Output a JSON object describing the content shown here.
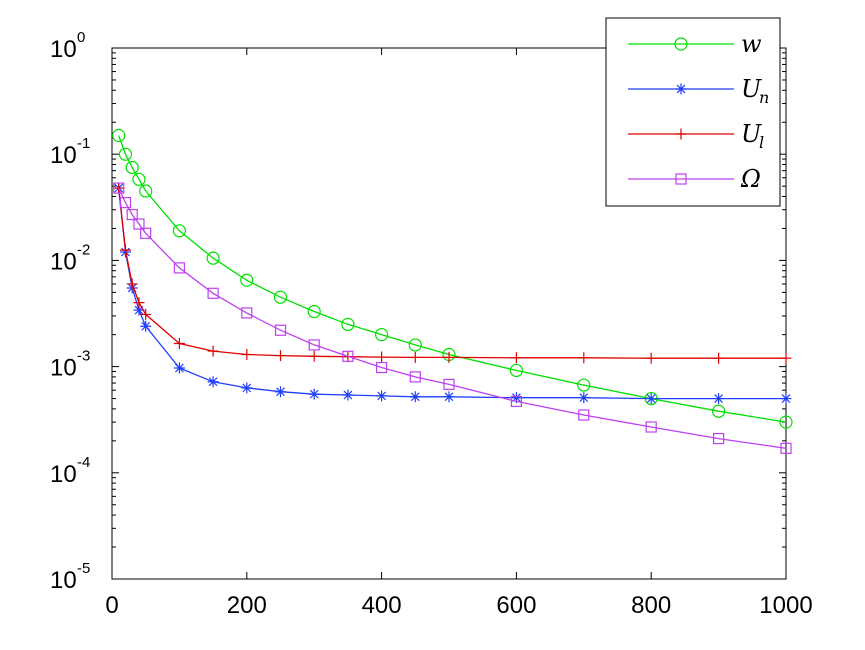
{
  "chart_data": {
    "type": "line",
    "yscale": "log",
    "xlim": [
      0,
      1000
    ],
    "ylim": [
      1e-05,
      1
    ],
    "x_ticks": [
      "0",
      "200",
      "400",
      "600",
      "800",
      "1000"
    ],
    "y_ticks": [
      {
        "base": "10",
        "exp": "0",
        "value": 1
      },
      {
        "base": "10",
        "exp": "-1",
        "value": 0.1
      },
      {
        "base": "10",
        "exp": "-2",
        "value": 0.01
      },
      {
        "base": "10",
        "exp": "-3",
        "value": 0.001
      },
      {
        "base": "10",
        "exp": "-4",
        "value": 0.0001
      },
      {
        "base": "10",
        "exp": "-5",
        "value": 1e-05
      }
    ],
    "grid": false,
    "legend_position": "top-right",
    "series": [
      {
        "name": "w",
        "subscript": "",
        "color": "#00e000",
        "marker": "circle",
        "x": [
          10,
          20,
          30,
          40,
          50,
          100,
          150,
          200,
          250,
          300,
          350,
          400,
          450,
          500,
          600,
          700,
          800,
          900,
          1000
        ],
        "y": [
          0.15,
          0.1,
          0.075,
          0.058,
          0.045,
          0.019,
          0.0105,
          0.0065,
          0.0045,
          0.0033,
          0.0025,
          0.002,
          0.0016,
          0.0013,
          0.00092,
          0.00067,
          0.0005,
          0.00038,
          0.0003
        ]
      },
      {
        "name": "U",
        "subscript": "n",
        "color": "#1f3fff",
        "marker": "star",
        "x": [
          10,
          20,
          30,
          40,
          50,
          100,
          150,
          200,
          250,
          300,
          350,
          400,
          450,
          500,
          600,
          700,
          800,
          900,
          1000
        ],
        "y": [
          0.048,
          0.012,
          0.0055,
          0.0034,
          0.0024,
          0.00097,
          0.00072,
          0.00063,
          0.00058,
          0.00055,
          0.00054,
          0.00053,
          0.00052,
          0.00052,
          0.00051,
          0.00051,
          0.0005,
          0.0005,
          0.0005
        ]
      },
      {
        "name": "U",
        "subscript": "l",
        "color": "#e00000",
        "marker": "plus",
        "x": [
          10,
          20,
          30,
          40,
          50,
          100,
          150,
          200,
          250,
          300,
          350,
          400,
          450,
          500,
          600,
          700,
          800,
          900,
          1000
        ],
        "y": [
          0.048,
          0.0125,
          0.006,
          0.004,
          0.0031,
          0.00165,
          0.0014,
          0.0013,
          0.00127,
          0.00125,
          0.00124,
          0.00123,
          0.00122,
          0.00122,
          0.00121,
          0.00121,
          0.0012,
          0.0012,
          0.0012
        ]
      },
      {
        "name": "Ω",
        "subscript": "",
        "color": "#bf40ef",
        "marker": "square",
        "x": [
          10,
          20,
          30,
          40,
          50,
          100,
          150,
          200,
          250,
          300,
          350,
          400,
          450,
          500,
          600,
          700,
          800,
          900,
          1000
        ],
        "y": [
          0.048,
          0.035,
          0.027,
          0.022,
          0.018,
          0.0085,
          0.0049,
          0.0032,
          0.0022,
          0.0016,
          0.00125,
          0.00098,
          0.0008,
          0.00068,
          0.00047,
          0.00035,
          0.00027,
          0.00021,
          0.00017
        ]
      }
    ]
  }
}
